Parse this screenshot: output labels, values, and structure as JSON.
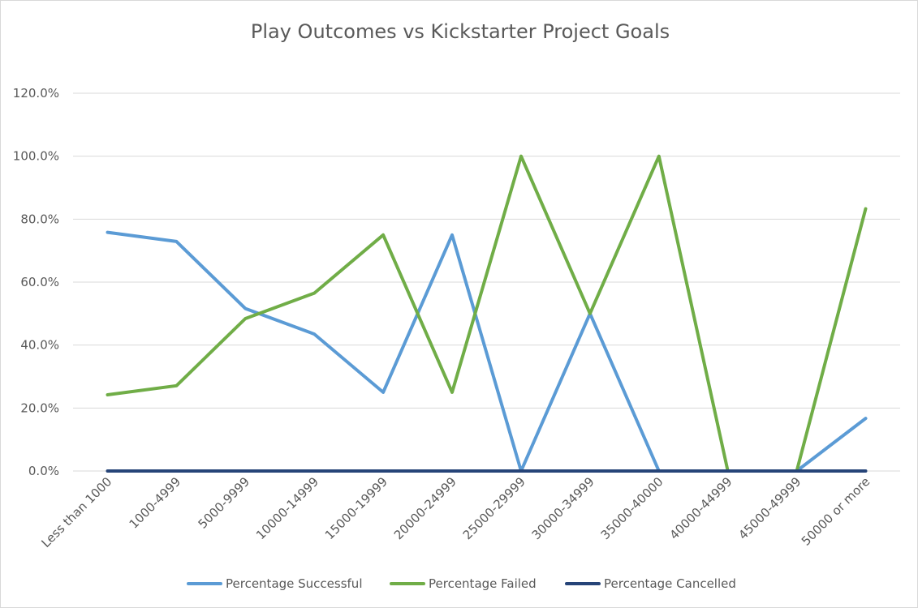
{
  "chart_data": {
    "type": "line",
    "title": "Play Outcomes vs Kickstarter Project Goals",
    "xlabel": "",
    "ylabel": "",
    "categories": [
      "Less than 1000",
      "1000-4999",
      "5000-9999",
      "10000-14999",
      "15000-19999",
      "20000-24999",
      "25000-29999",
      "30000-34999",
      "35000-40000",
      "40000-44999",
      "45000-49999",
      "50000 or more"
    ],
    "ylim": [
      0,
      120
    ],
    "ytick_labels": [
      "0.0%",
      "20.0%",
      "40.0%",
      "60.0%",
      "80.0%",
      "100.0%",
      "120.0%"
    ],
    "grid": true,
    "legend_position": "bottom",
    "series": [
      {
        "name": "Percentage Successful",
        "color": "#5b9bd5",
        "values": [
          75.8,
          72.9,
          51.6,
          43.5,
          25.0,
          75.0,
          0.0,
          50.0,
          0.0,
          0.0,
          0.0,
          16.7
        ]
      },
      {
        "name": "Percentage Failed",
        "color": "#70ad47",
        "values": [
          24.2,
          27.1,
          48.4,
          56.5,
          75.0,
          25.0,
          100.0,
          50.0,
          100.0,
          0.0,
          0.0,
          83.3
        ]
      },
      {
        "name": "Percentage Cancelled",
        "color": "#264478",
        "values": [
          0.0,
          0.0,
          0.0,
          0.0,
          0.0,
          0.0,
          0.0,
          0.0,
          0.0,
          0.0,
          0.0,
          0.0
        ]
      }
    ],
    "gridline_color": "#d9d9d9",
    "axis_color": "#d9d9d9"
  }
}
